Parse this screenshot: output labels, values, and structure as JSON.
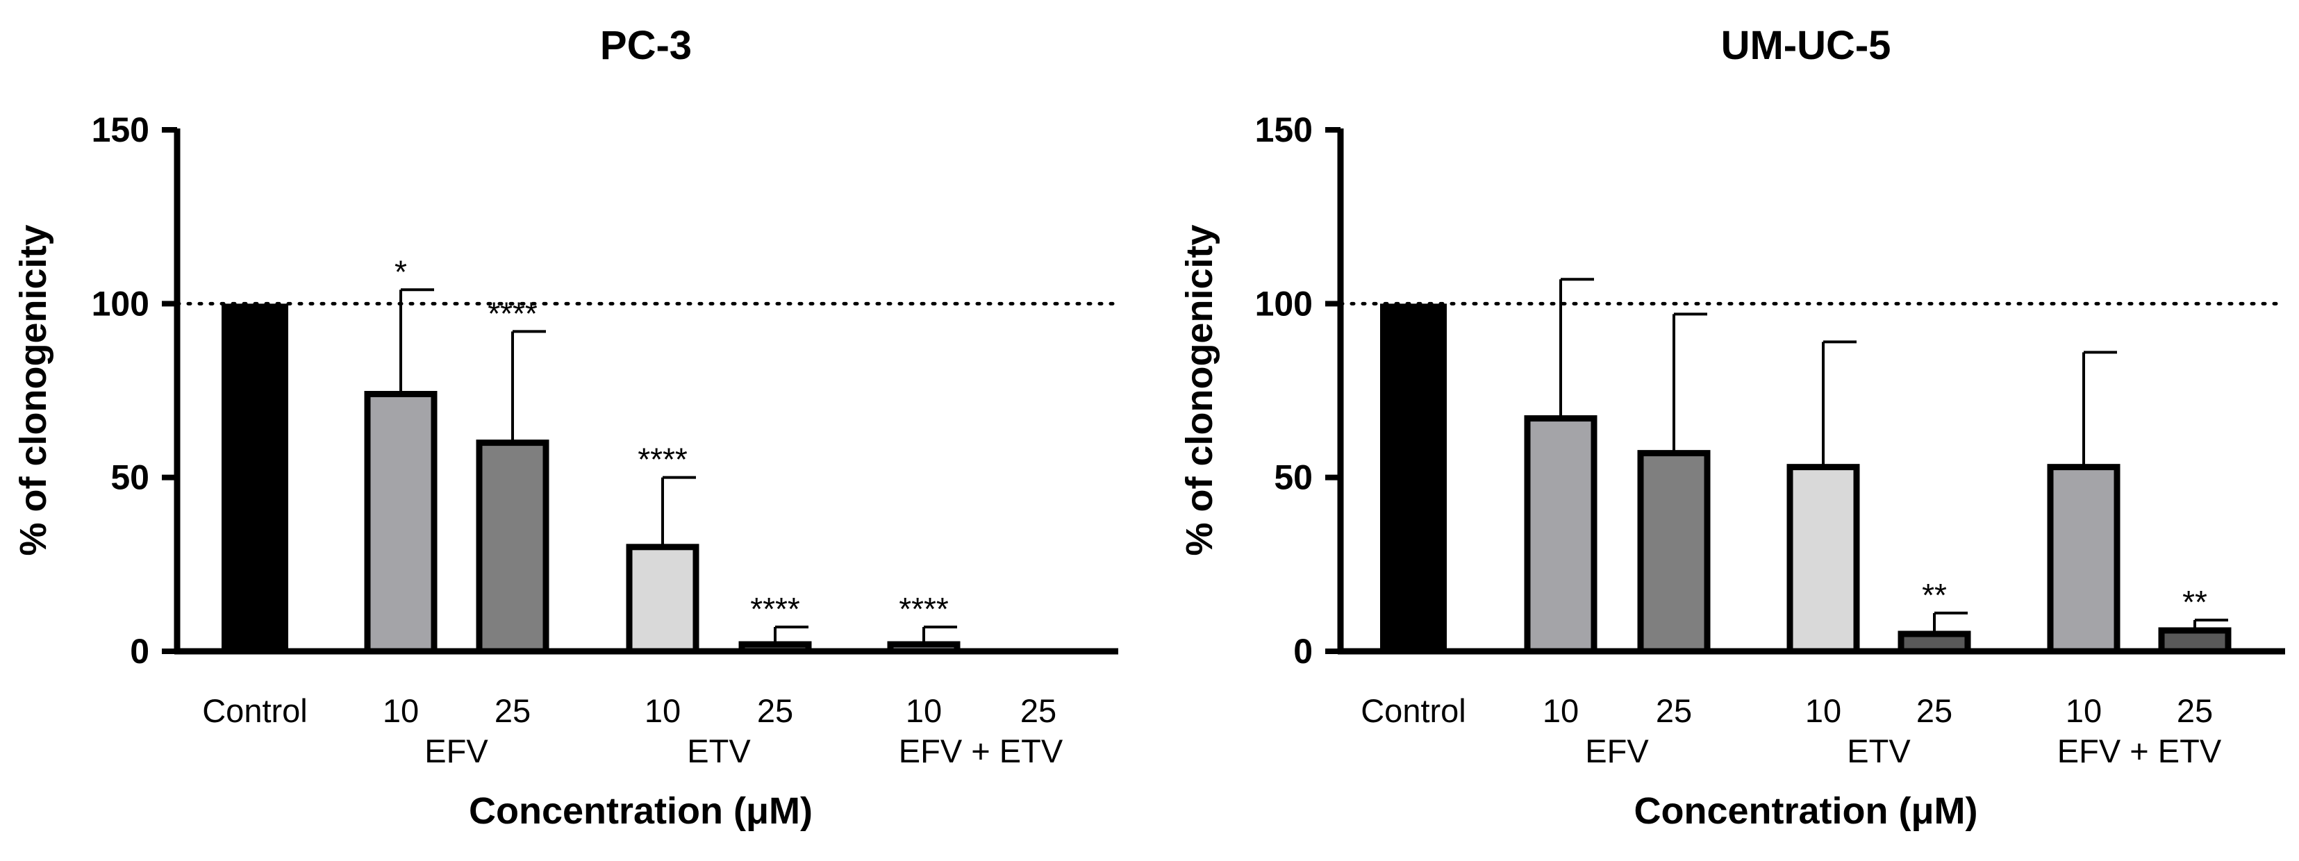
{
  "chart_data": [
    {
      "type": "bar",
      "title": "PC-3",
      "xlabel": "Concentration (μM)",
      "ylabel": "% of clonogenicity",
      "ylim": [
        0,
        150
      ],
      "yticks": [
        0,
        50,
        100,
        150
      ],
      "reference_line": 100,
      "groups": [
        "",
        "EFV",
        "ETV",
        "EFV + ETV"
      ],
      "bars": [
        {
          "label": "Control",
          "group": "",
          "value": 100,
          "error": 0,
          "sig": "",
          "color": "#000000"
        },
        {
          "label": "10",
          "group": "EFV",
          "value": 74,
          "error": 30,
          "sig": "*",
          "color": "#a4a4a8"
        },
        {
          "label": "25",
          "group": "EFV",
          "value": 60,
          "error": 32,
          "sig": "****",
          "color": "#7f7f7f"
        },
        {
          "label": "10",
          "group": "ETV",
          "value": 30,
          "error": 20,
          "sig": "****",
          "color": "#d9d9d9"
        },
        {
          "label": "25",
          "group": "ETV",
          "value": 2,
          "error": 5,
          "sig": "****",
          "color": "#595959"
        },
        {
          "label": "10",
          "group": "EFV + ETV",
          "value": 2,
          "error": 5,
          "sig": "****",
          "color": "#a4a4a8"
        },
        {
          "label": "25",
          "group": "EFV + ETV",
          "value": 0,
          "error": 0,
          "sig": "",
          "color": "#595959"
        }
      ]
    },
    {
      "type": "bar",
      "title": "UM-UC-5",
      "xlabel": "Concentration (μM)",
      "ylabel": "% of clonogenicity",
      "ylim": [
        0,
        150
      ],
      "yticks": [
        0,
        50,
        100,
        150
      ],
      "reference_line": 100,
      "groups": [
        "",
        "EFV",
        "ETV",
        "EFV + ETV"
      ],
      "bars": [
        {
          "label": "Control",
          "group": "",
          "value": 100,
          "error": 0,
          "sig": "",
          "color": "#000000"
        },
        {
          "label": "10",
          "group": "EFV",
          "value": 67,
          "error": 40,
          "sig": "",
          "color": "#a4a4a8"
        },
        {
          "label": "25",
          "group": "EFV",
          "value": 57,
          "error": 40,
          "sig": "",
          "color": "#7f7f7f"
        },
        {
          "label": "10",
          "group": "ETV",
          "value": 53,
          "error": 36,
          "sig": "",
          "color": "#d9d9d9"
        },
        {
          "label": "25",
          "group": "ETV",
          "value": 5,
          "error": 6,
          "sig": "**",
          "color": "#595959"
        },
        {
          "label": "10",
          "group": "EFV + ETV",
          "value": 53,
          "error": 33,
          "sig": "",
          "color": "#a4a4a8"
        },
        {
          "label": "25",
          "group": "EFV + ETV",
          "value": 6,
          "error": 3,
          "sig": "**",
          "color": "#595959"
        }
      ]
    }
  ]
}
